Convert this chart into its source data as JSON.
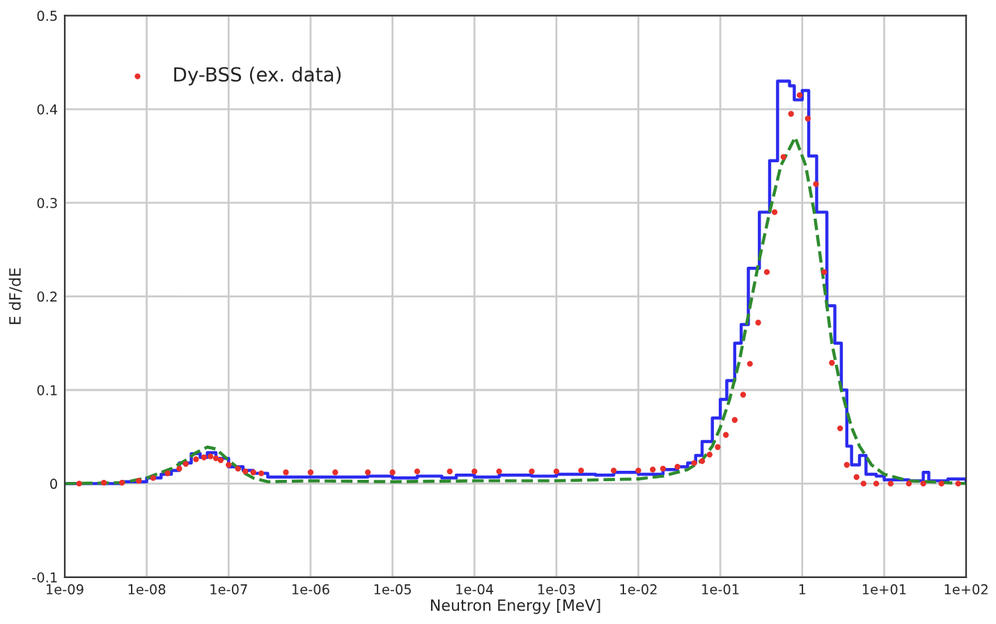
{
  "chart_data": {
    "type": "line",
    "xlabel": "Neutron Energy [MeV]",
    "ylabel": "E dF/dE",
    "log": "x",
    "grid": true,
    "legend": "top left",
    "xlim": [
      1e-09,
      100
    ],
    "ylim": [
      -0.1,
      0.5
    ],
    "xticks": [
      {
        "value": 1e-09,
        "label": "1e-09"
      },
      {
        "value": 1e-08,
        "label": "1e-08"
      },
      {
        "value": 1e-07,
        "label": "1e-07"
      },
      {
        "value": 1e-06,
        "label": "1e-06"
      },
      {
        "value": 1e-05,
        "label": "1e-05"
      },
      {
        "value": 0.0001,
        "label": "1e-04"
      },
      {
        "value": 0.001,
        "label": "1e-03"
      },
      {
        "value": 0.01,
        "label": "1e-02"
      },
      {
        "value": 0.1,
        "label": "1e-01"
      },
      1,
      {
        "value": 10,
        "label": "1e+01"
      },
      {
        "value": 100,
        "label": "1e+02"
      }
    ],
    "yticks": [
      -0.1,
      0,
      0.1,
      0.2,
      0.3,
      0.4,
      0.5
    ],
    "series": [
      {
        "type": "step",
        "color": "#2b2bef",
        "line_style": "solid",
        "marker": "none",
        "x": [
          1e-09,
          5e-09,
          1e-08,
          1.5e-08,
          2e-08,
          2.5e-08,
          3.5e-08,
          4.5e-08,
          5.5e-08,
          7e-08,
          1e-07,
          1.5e-07,
          2e-07,
          3e-07,
          1e-06,
          5e-06,
          1e-05,
          2e-05,
          4e-05,
          6e-05,
          0.0001,
          0.0002,
          0.0005,
          0.001,
          0.003,
          0.005,
          0.01,
          0.02,
          0.03,
          0.04,
          0.05,
          0.06,
          0.08,
          0.1,
          0.12,
          0.15,
          0.18,
          0.22,
          0.3,
          0.4,
          0.5,
          0.7,
          0.8,
          1.0,
          1.2,
          1.5,
          2,
          2.5,
          3,
          3.5,
          4,
          5,
          6,
          8,
          10,
          20,
          30,
          35,
          60,
          100
        ],
        "values": [
          0,
          0.002,
          0.006,
          0.01,
          0.014,
          0.022,
          0.032,
          0.028,
          0.033,
          0.027,
          0.018,
          0.014,
          0.011,
          0.007,
          0.007,
          0.008,
          0.006,
          0.008,
          0.006,
          0.009,
          0.007,
          0.009,
          0.008,
          0.01,
          0.009,
          0.012,
          0.01,
          0.015,
          0.018,
          0.022,
          0.03,
          0.045,
          0.07,
          0.09,
          0.11,
          0.15,
          0.17,
          0.23,
          0.29,
          0.345,
          0.43,
          0.425,
          0.41,
          0.42,
          0.35,
          0.29,
          0.19,
          0.15,
          0.1,
          0.04,
          0.02,
          0.03,
          0.01,
          0.008,
          0.004,
          0.003,
          0.012,
          0.003,
          0.005,
          0.002
        ]
      },
      {
        "type": "scatter",
        "name": "Dy-BSS (ex. data)",
        "color": "#e8302a",
        "marker": "circle",
        "x": [
          1.5e-09,
          3e-09,
          5e-09,
          8e-09,
          1.2e-08,
          1.8e-08,
          2.5e-08,
          3e-08,
          4e-08,
          5e-08,
          6e-08,
          7e-08,
          8e-08,
          1e-07,
          1.3e-07,
          1.6e-07,
          2e-07,
          2.5e-07,
          5e-07,
          1e-06,
          2e-06,
          5e-06,
          1e-05,
          2e-05,
          5e-05,
          0.0001,
          0.0002,
          0.0005,
          0.001,
          0.002,
          0.005,
          0.01,
          0.015,
          0.02,
          0.03,
          0.048,
          0.06,
          0.074,
          0.093,
          0.117,
          0.15,
          0.19,
          0.23,
          0.29,
          0.37,
          0.46,
          0.59,
          0.73,
          0.93,
          1.17,
          1.47,
          1.85,
          2.3,
          2.9,
          3.5,
          4.6,
          5.6,
          8,
          12,
          20,
          30,
          50,
          80
        ],
        "values": [
          0,
          0.001,
          0.001,
          0.003,
          0.006,
          0.011,
          0.016,
          0.021,
          0.026,
          0.028,
          0.029,
          0.027,
          0.025,
          0.02,
          0.016,
          0.013,
          0.012,
          0.011,
          0.012,
          0.012,
          0.012,
          0.012,
          0.012,
          0.013,
          0.013,
          0.013,
          0.013,
          0.013,
          0.013,
          0.014,
          0.014,
          0.014,
          0.015,
          0.016,
          0.018,
          0.022,
          0.024,
          0.031,
          0.039,
          0.052,
          0.068,
          0.095,
          0.128,
          0.172,
          0.226,
          0.29,
          0.349,
          0.395,
          0.415,
          0.39,
          0.32,
          0.226,
          0.129,
          0.059,
          0.02,
          0.007,
          0,
          0,
          0,
          0,
          0,
          0,
          0
        ]
      },
      {
        "color": "#2e8b2e",
        "line_style": "dashed",
        "marker": "none",
        "x": [
          1e-09,
          5e-09,
          1e-08,
          2e-08,
          3e-08,
          4e-08,
          5.5e-08,
          7e-08,
          1e-07,
          1.5e-07,
          2e-07,
          3e-07,
          1e-06,
          1e-05,
          0.0001,
          0.001,
          0.01,
          0.02,
          0.04,
          0.06,
          0.08,
          0.1,
          0.13,
          0.17,
          0.22,
          0.3,
          0.4,
          0.55,
          0.82,
          1.1,
          1.4,
          1.8,
          2.3,
          3,
          4,
          5,
          7,
          10,
          20,
          100
        ],
        "values": [
          0,
          0.001,
          0.006,
          0.016,
          0.025,
          0.033,
          0.039,
          0.037,
          0.025,
          0.012,
          0.006,
          0.002,
          0.003,
          0.002,
          0.003,
          0.003,
          0.005,
          0.008,
          0.015,
          0.025,
          0.04,
          0.06,
          0.09,
          0.13,
          0.18,
          0.24,
          0.29,
          0.34,
          0.37,
          0.34,
          0.29,
          0.22,
          0.15,
          0.1,
          0.06,
          0.04,
          0.02,
          0.01,
          0.003,
          0
        ]
      }
    ]
  }
}
